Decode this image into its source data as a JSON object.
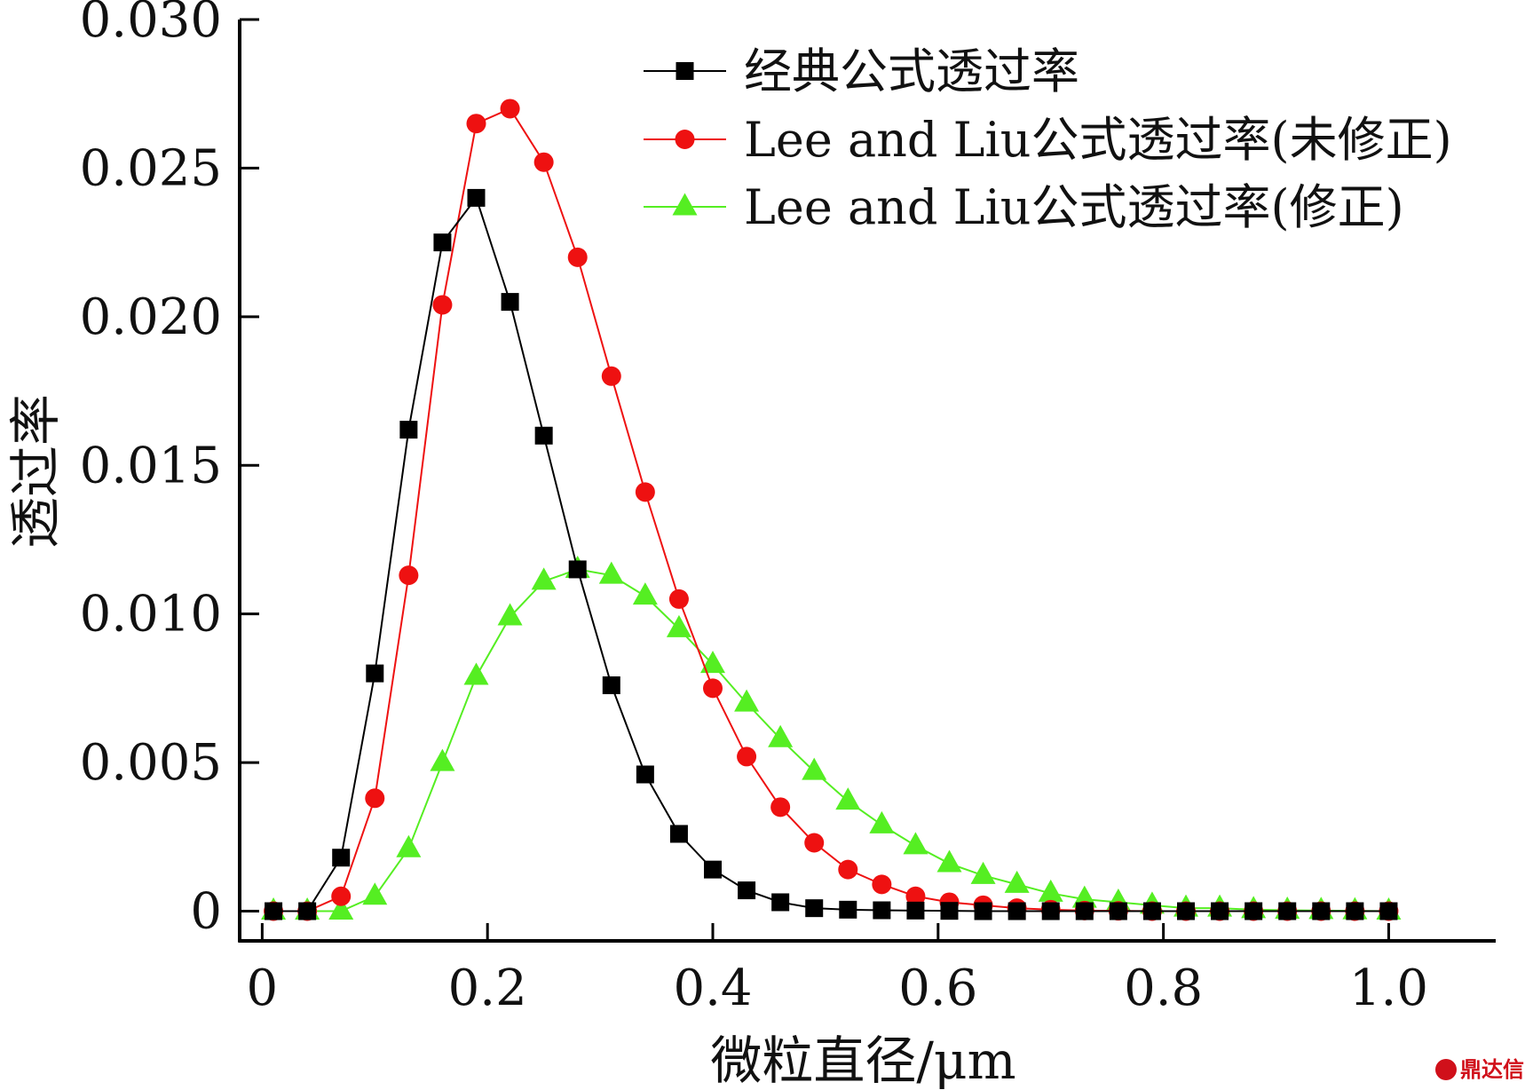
{
  "chart_data": {
    "type": "line",
    "xlabel": "微粒直径/μm",
    "ylabel": "透过率",
    "xlim": [
      -0.02,
      1.095
    ],
    "ylim": [
      -0.001,
      0.03
    ],
    "xticks": [
      0,
      0.2,
      0.4,
      0.6,
      0.8,
      1.0
    ],
    "xtick_labels": [
      "0",
      "0.2",
      "0.4",
      "0.6",
      "0.8",
      "1.0"
    ],
    "yticks": [
      0,
      0.005,
      0.01,
      0.015,
      0.02,
      0.025,
      0.03
    ],
    "ytick_labels": [
      "0",
      "0.005",
      "0.010",
      "0.015",
      "0.020",
      "0.025",
      "0.030"
    ],
    "grid": false,
    "legend_position": "top-right",
    "x": [
      0.01,
      0.04,
      0.07,
      0.1,
      0.13,
      0.16,
      0.19,
      0.22,
      0.25,
      0.28,
      0.31,
      0.34,
      0.37,
      0.4,
      0.43,
      0.46,
      0.49,
      0.52,
      0.55,
      0.58,
      0.61,
      0.64,
      0.67,
      0.7,
      0.73,
      0.76,
      0.79,
      0.82,
      0.85,
      0.88,
      0.91,
      0.94,
      0.97,
      1.0
    ],
    "series": [
      {
        "name": "经典公式透过率",
        "color": "#000000",
        "marker": "square",
        "values": [
          0,
          0,
          0.0018,
          0.008,
          0.0162,
          0.0225,
          0.024,
          0.0205,
          0.016,
          0.0115,
          0.0076,
          0.0046,
          0.0026,
          0.0014,
          0.0007,
          0.0003,
          0.0001,
          5e-05,
          3e-05,
          2e-05,
          1e-05,
          0,
          0,
          0,
          0,
          0,
          0,
          0,
          0,
          0,
          0,
          0,
          0,
          0
        ]
      },
      {
        "name": "Lee and Liu公式透过率(未修正)",
        "color": "#ee1111",
        "marker": "circle",
        "values": [
          0,
          0,
          0.0005,
          0.0038,
          0.0113,
          0.0204,
          0.0265,
          0.027,
          0.0252,
          0.022,
          0.018,
          0.0141,
          0.0105,
          0.0075,
          0.0052,
          0.0035,
          0.0023,
          0.0014,
          0.0009,
          0.0005,
          0.0003,
          0.0002,
          0.0001,
          5e-05,
          2e-05,
          1e-05,
          0,
          0,
          0,
          0,
          0,
          0,
          0,
          0
        ]
      },
      {
        "name": "Lee and Liu公式透过率(修正)",
        "color": "#55ee22",
        "marker": "triangle",
        "values": [
          0,
          0,
          0,
          0.0005,
          0.0021,
          0.005,
          0.0079,
          0.0099,
          0.0111,
          0.0115,
          0.0113,
          0.0106,
          0.0095,
          0.0083,
          0.007,
          0.0058,
          0.0047,
          0.0037,
          0.0029,
          0.0022,
          0.0016,
          0.0012,
          0.0009,
          0.0006,
          0.0004,
          0.0003,
          0.0002,
          0.0001,
          0.0001,
          5e-05,
          3e-05,
          2e-05,
          1e-05,
          0
        ]
      }
    ]
  },
  "watermark": {
    "text": "鼎达信"
  }
}
